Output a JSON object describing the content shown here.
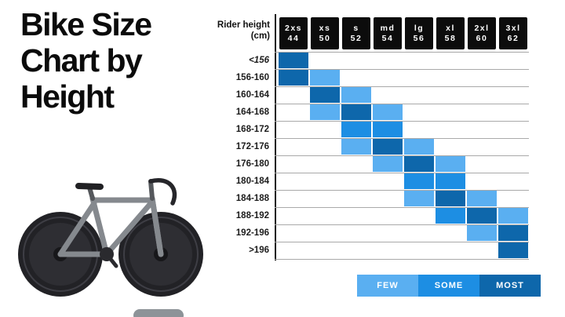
{
  "title": {
    "lines": [
      "Bike Size",
      "Chart by",
      "Height"
    ]
  },
  "axis": {
    "corner_label": "Rider height",
    "corner_unit": "(cm)"
  },
  "chart_data": {
    "type": "heatmap",
    "title": "Bike Size Chart by Height",
    "x_axis_label": "Rider height (cm)",
    "columns": [
      {
        "size": "2xs",
        "number": "44"
      },
      {
        "size": "xs",
        "number": "50"
      },
      {
        "size": "s",
        "number": "52"
      },
      {
        "size": "md",
        "number": "54"
      },
      {
        "size": "lg",
        "number": "56"
      },
      {
        "size": "xl",
        "number": "58"
      },
      {
        "size": "2xl",
        "number": "60"
      },
      {
        "size": "3xl",
        "number": "62"
      }
    ],
    "rows": [
      "<156",
      "156-160",
      "160-164",
      "164-168",
      "168-172",
      "172-176",
      "176-180",
      "180-184",
      "184-188",
      "188-192",
      "192-196",
      ">196"
    ],
    "intensity_scale": {
      "0": "none",
      "1": "FEW",
      "2": "SOME",
      "3": "MOST"
    },
    "cells": [
      [
        3,
        0,
        0,
        0,
        0,
        0,
        0,
        0
      ],
      [
        3,
        1,
        0,
        0,
        0,
        0,
        0,
        0
      ],
      [
        0,
        3,
        1,
        0,
        0,
        0,
        0,
        0
      ],
      [
        0,
        1,
        3,
        1,
        0,
        0,
        0,
        0
      ],
      [
        0,
        0,
        2,
        2,
        0,
        0,
        0,
        0
      ],
      [
        0,
        0,
        1,
        3,
        1,
        0,
        0,
        0
      ],
      [
        0,
        0,
        0,
        1,
        3,
        1,
        0,
        0
      ],
      [
        0,
        0,
        0,
        0,
        2,
        2,
        0,
        0
      ],
      [
        0,
        0,
        0,
        0,
        1,
        3,
        1,
        0
      ],
      [
        0,
        0,
        0,
        0,
        0,
        2,
        3,
        1
      ],
      [
        0,
        0,
        0,
        0,
        0,
        0,
        1,
        3
      ],
      [
        0,
        0,
        0,
        0,
        0,
        0,
        0,
        3
      ]
    ],
    "legend": [
      {
        "label": "FEW",
        "color": "#5aaff1"
      },
      {
        "label": "SOME",
        "color": "#1d8ee3"
      },
      {
        "label": "MOST",
        "color": "#0e67ab"
      }
    ],
    "header_color": "#0c0c0c",
    "gridline_color": "#a9a9a9"
  }
}
